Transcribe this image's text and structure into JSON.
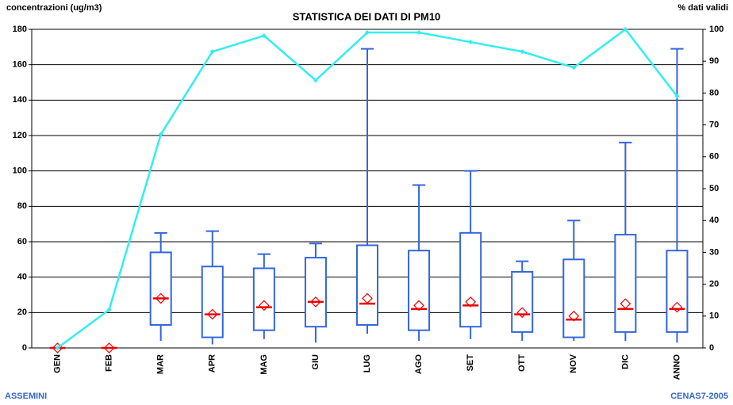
{
  "chart_data": {
    "type": "box",
    "title": "STATISTICA DEI DATI DI PM10",
    "ylabel": "concentrazioni (ug/m3)",
    "y2label": "% dati validi",
    "footer_left": "ASSEMINI",
    "footer_right": "CENAS7-2005",
    "categories": [
      "GEN",
      "FEB",
      "MAR",
      "APR",
      "MAG",
      "GIU",
      "LUG",
      "AGO",
      "SET",
      "OTT",
      "NOV",
      "DIC",
      "ANNO"
    ],
    "boxes": {
      "color": "#3366dd",
      "median_color": "#ee0000",
      "min": [
        0,
        0,
        4,
        2,
        5,
        3,
        8,
        4,
        5,
        4,
        4,
        4,
        3
      ],
      "q1": [
        0,
        0,
        13,
        6,
        10,
        12,
        13,
        10,
        12,
        9,
        6,
        9,
        9
      ],
      "median": [
        0,
        0,
        28,
        19,
        23,
        26,
        25,
        22,
        24,
        19,
        16,
        22,
        22
      ],
      "q3": [
        0,
        0,
        54,
        46,
        45,
        51,
        58,
        55,
        65,
        43,
        50,
        64,
        55
      ],
      "max": [
        0,
        0,
        65,
        66,
        53,
        59,
        169,
        92,
        100,
        49,
        72,
        116,
        169
      ],
      "mean": [
        0,
        0,
        28,
        19,
        24,
        26,
        28,
        24,
        26,
        20,
        18,
        25,
        23
      ]
    },
    "line": {
      "color": "#33eeee",
      "axis": "y2",
      "values": [
        0,
        12,
        67,
        93,
        98,
        84,
        99,
        99,
        96,
        93,
        88,
        100,
        79
      ]
    },
    "ylim": [
      0,
      180
    ],
    "yticks": [
      0,
      20,
      40,
      60,
      80,
      100,
      120,
      140,
      160,
      180
    ],
    "y2lim": [
      0,
      100
    ],
    "y2ticks": [
      0,
      10,
      20,
      30,
      40,
      50,
      60,
      70,
      80,
      90,
      100
    ],
    "grid": true
  }
}
